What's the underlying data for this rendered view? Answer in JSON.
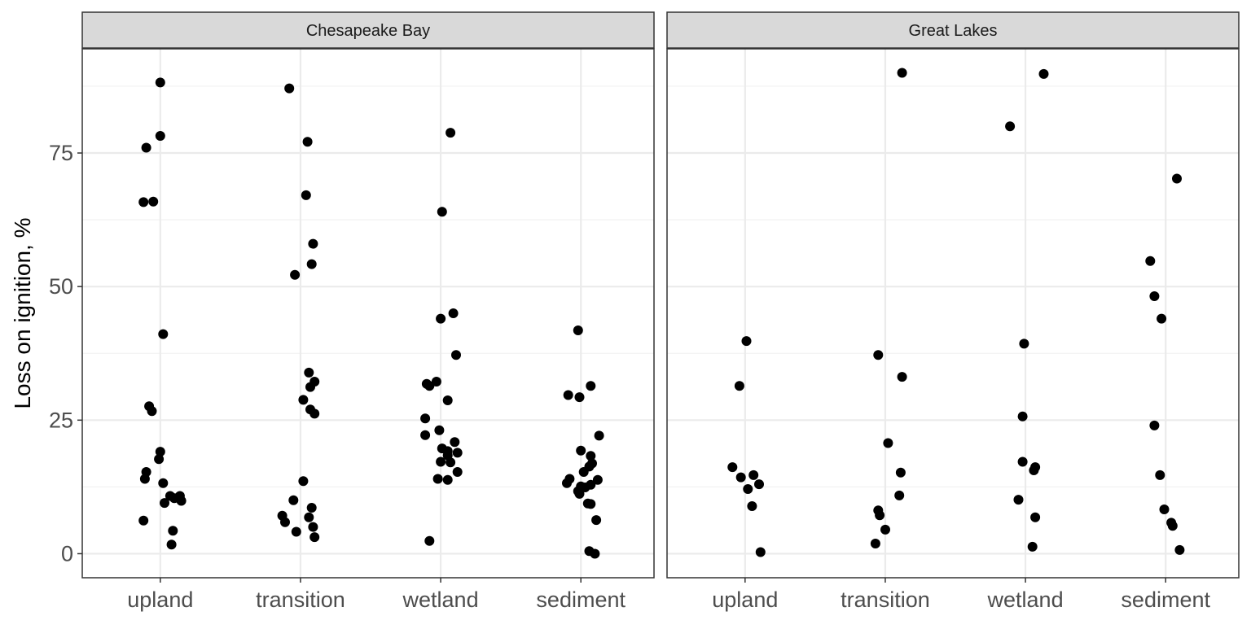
{
  "chart_data": {
    "type": "scatter",
    "ylabel": "Loss on ignition, %",
    "xlabel": "",
    "ylim": [
      -4.5,
      94.5
    ],
    "yticks": [
      0,
      25,
      50,
      75
    ],
    "categories": [
      "upland",
      "transition",
      "wetland",
      "sediment"
    ],
    "grid": true,
    "theme": "bw",
    "point_color": "#000000",
    "facets": [
      {
        "title": "Chesapeake Bay",
        "points": [
          {
            "x": "upland",
            "offset": 0.0,
            "y": 88.2
          },
          {
            "x": "upland",
            "offset": 0.0,
            "y": 78.2
          },
          {
            "x": "upland",
            "offset": -0.1,
            "y": 76.0
          },
          {
            "x": "upland",
            "offset": -0.12,
            "y": 65.8
          },
          {
            "x": "upland",
            "offset": -0.05,
            "y": 65.9
          },
          {
            "x": "upland",
            "offset": 0.02,
            "y": 41.1
          },
          {
            "x": "upland",
            "offset": -0.08,
            "y": 27.6
          },
          {
            "x": "upland",
            "offset": -0.06,
            "y": 26.7
          },
          {
            "x": "upland",
            "offset": 0.0,
            "y": 19.1
          },
          {
            "x": "upland",
            "offset": -0.01,
            "y": 17.7
          },
          {
            "x": "upland",
            "offset": -0.1,
            "y": 15.3
          },
          {
            "x": "upland",
            "offset": -0.11,
            "y": 14.0
          },
          {
            "x": "upland",
            "offset": 0.02,
            "y": 13.2
          },
          {
            "x": "upland",
            "offset": 0.07,
            "y": 10.8
          },
          {
            "x": "upland",
            "offset": 0.14,
            "y": 10.8
          },
          {
            "x": "upland",
            "offset": 0.1,
            "y": 10.4
          },
          {
            "x": "upland",
            "offset": 0.15,
            "y": 9.9
          },
          {
            "x": "upland",
            "offset": 0.03,
            "y": 9.5
          },
          {
            "x": "upland",
            "offset": -0.12,
            "y": 6.2
          },
          {
            "x": "upland",
            "offset": 0.09,
            "y": 4.3
          },
          {
            "x": "upland",
            "offset": 0.08,
            "y": 1.7
          },
          {
            "x": "transition",
            "offset": -0.08,
            "y": 87.1
          },
          {
            "x": "transition",
            "offset": 0.05,
            "y": 77.1
          },
          {
            "x": "transition",
            "offset": 0.04,
            "y": 67.1
          },
          {
            "x": "transition",
            "offset": 0.09,
            "y": 58.0
          },
          {
            "x": "transition",
            "offset": 0.08,
            "y": 54.2
          },
          {
            "x": "transition",
            "offset": -0.04,
            "y": 52.2
          },
          {
            "x": "transition",
            "offset": 0.06,
            "y": 33.9
          },
          {
            "x": "transition",
            "offset": 0.1,
            "y": 32.2
          },
          {
            "x": "transition",
            "offset": 0.07,
            "y": 31.2
          },
          {
            "x": "transition",
            "offset": 0.02,
            "y": 28.8
          },
          {
            "x": "transition",
            "offset": 0.07,
            "y": 27.0
          },
          {
            "x": "transition",
            "offset": 0.1,
            "y": 26.2
          },
          {
            "x": "transition",
            "offset": 0.02,
            "y": 13.6
          },
          {
            "x": "transition",
            "offset": -0.05,
            "y": 10.0
          },
          {
            "x": "transition",
            "offset": 0.08,
            "y": 8.6
          },
          {
            "x": "transition",
            "offset": -0.13,
            "y": 7.1
          },
          {
            "x": "transition",
            "offset": 0.06,
            "y": 6.8
          },
          {
            "x": "transition",
            "offset": -0.11,
            "y": 5.9
          },
          {
            "x": "transition",
            "offset": 0.09,
            "y": 5.0
          },
          {
            "x": "transition",
            "offset": -0.03,
            "y": 4.1
          },
          {
            "x": "transition",
            "offset": 0.1,
            "y": 3.1
          },
          {
            "x": "wetland",
            "offset": 0.07,
            "y": 78.8
          },
          {
            "x": "wetland",
            "offset": 0.01,
            "y": 64.0
          },
          {
            "x": "wetland",
            "offset": 0.09,
            "y": 45.0
          },
          {
            "x": "wetland",
            "offset": 0.0,
            "y": 44.0
          },
          {
            "x": "wetland",
            "offset": 0.11,
            "y": 37.2
          },
          {
            "x": "wetland",
            "offset": -0.03,
            "y": 32.2
          },
          {
            "x": "wetland",
            "offset": -0.1,
            "y": 31.8
          },
          {
            "x": "wetland",
            "offset": -0.08,
            "y": 31.4
          },
          {
            "x": "wetland",
            "offset": 0.05,
            "y": 28.7
          },
          {
            "x": "wetland",
            "offset": -0.11,
            "y": 25.3
          },
          {
            "x": "wetland",
            "offset": -0.01,
            "y": 23.1
          },
          {
            "x": "wetland",
            "offset": -0.11,
            "y": 22.2
          },
          {
            "x": "wetland",
            "offset": 0.1,
            "y": 20.9
          },
          {
            "x": "wetland",
            "offset": 0.01,
            "y": 19.7
          },
          {
            "x": "wetland",
            "offset": 0.05,
            "y": 19.2
          },
          {
            "x": "wetland",
            "offset": 0.12,
            "y": 18.9
          },
          {
            "x": "wetland",
            "offset": 0.05,
            "y": 18.4
          },
          {
            "x": "wetland",
            "offset": 0.0,
            "y": 17.2
          },
          {
            "x": "wetland",
            "offset": 0.07,
            "y": 17.1
          },
          {
            "x": "wetland",
            "offset": 0.12,
            "y": 15.3
          },
          {
            "x": "wetland",
            "offset": -0.02,
            "y": 14.0
          },
          {
            "x": "wetland",
            "offset": 0.05,
            "y": 13.8
          },
          {
            "x": "wetland",
            "offset": -0.08,
            "y": 2.4
          },
          {
            "x": "sediment",
            "offset": -0.02,
            "y": 41.8
          },
          {
            "x": "sediment",
            "offset": 0.07,
            "y": 31.4
          },
          {
            "x": "sediment",
            "offset": -0.09,
            "y": 29.7
          },
          {
            "x": "sediment",
            "offset": -0.01,
            "y": 29.3
          },
          {
            "x": "sediment",
            "offset": 0.13,
            "y": 22.1
          },
          {
            "x": "sediment",
            "offset": 0.0,
            "y": 19.3
          },
          {
            "x": "sediment",
            "offset": 0.07,
            "y": 18.3
          },
          {
            "x": "sediment",
            "offset": 0.08,
            "y": 16.9
          },
          {
            "x": "sediment",
            "offset": 0.06,
            "y": 16.3
          },
          {
            "x": "sediment",
            "offset": 0.02,
            "y": 15.3
          },
          {
            "x": "sediment",
            "offset": -0.08,
            "y": 14.0
          },
          {
            "x": "sediment",
            "offset": 0.12,
            "y": 13.8
          },
          {
            "x": "sediment",
            "offset": -0.1,
            "y": 13.2
          },
          {
            "x": "sediment",
            "offset": 0.07,
            "y": 12.9
          },
          {
            "x": "sediment",
            "offset": 0.0,
            "y": 12.6
          },
          {
            "x": "sediment",
            "offset": 0.03,
            "y": 12.4
          },
          {
            "x": "sediment",
            "offset": -0.02,
            "y": 11.7
          },
          {
            "x": "sediment",
            "offset": -0.01,
            "y": 11.2
          },
          {
            "x": "sediment",
            "offset": 0.05,
            "y": 9.4
          },
          {
            "x": "sediment",
            "offset": 0.07,
            "y": 9.3
          },
          {
            "x": "sediment",
            "offset": 0.11,
            "y": 6.3
          },
          {
            "x": "sediment",
            "offset": 0.06,
            "y": 0.5
          },
          {
            "x": "sediment",
            "offset": 0.1,
            "y": 0.0
          }
        ]
      },
      {
        "title": "Great Lakes",
        "points": [
          {
            "x": "upland",
            "offset": 0.01,
            "y": 39.8
          },
          {
            "x": "upland",
            "offset": -0.04,
            "y": 31.4
          },
          {
            "x": "upland",
            "offset": -0.09,
            "y": 16.2
          },
          {
            "x": "upland",
            "offset": 0.06,
            "y": 14.7
          },
          {
            "x": "upland",
            "offset": -0.03,
            "y": 14.3
          },
          {
            "x": "upland",
            "offset": 0.1,
            "y": 13.0
          },
          {
            "x": "upland",
            "offset": 0.02,
            "y": 12.1
          },
          {
            "x": "upland",
            "offset": 0.05,
            "y": 8.9
          },
          {
            "x": "upland",
            "offset": 0.11,
            "y": 0.3
          },
          {
            "x": "transition",
            "offset": 0.12,
            "y": 90.0
          },
          {
            "x": "transition",
            "offset": -0.05,
            "y": 37.2
          },
          {
            "x": "transition",
            "offset": 0.12,
            "y": 33.1
          },
          {
            "x": "transition",
            "offset": 0.02,
            "y": 20.7
          },
          {
            "x": "transition",
            "offset": 0.11,
            "y": 15.2
          },
          {
            "x": "transition",
            "offset": 0.1,
            "y": 10.9
          },
          {
            "x": "transition",
            "offset": -0.05,
            "y": 8.1
          },
          {
            "x": "transition",
            "offset": -0.04,
            "y": 7.2
          },
          {
            "x": "transition",
            "offset": 0.0,
            "y": 4.5
          },
          {
            "x": "transition",
            "offset": -0.07,
            "y": 1.9
          },
          {
            "x": "wetland",
            "offset": -0.11,
            "y": 80.0
          },
          {
            "x": "wetland",
            "offset": 0.13,
            "y": 89.8
          },
          {
            "x": "wetland",
            "offset": -0.01,
            "y": 39.3
          },
          {
            "x": "wetland",
            "offset": -0.02,
            "y": 25.7
          },
          {
            "x": "wetland",
            "offset": -0.02,
            "y": 17.2
          },
          {
            "x": "wetland",
            "offset": 0.07,
            "y": 16.2
          },
          {
            "x": "wetland",
            "offset": 0.06,
            "y": 15.6
          },
          {
            "x": "wetland",
            "offset": -0.05,
            "y": 10.1
          },
          {
            "x": "wetland",
            "offset": 0.07,
            "y": 6.8
          },
          {
            "x": "wetland",
            "offset": 0.05,
            "y": 1.3
          },
          {
            "x": "sediment",
            "offset": 0.08,
            "y": 70.2
          },
          {
            "x": "sediment",
            "offset": -0.11,
            "y": 54.8
          },
          {
            "x": "sediment",
            "offset": -0.08,
            "y": 48.2
          },
          {
            "x": "sediment",
            "offset": -0.03,
            "y": 44.0
          },
          {
            "x": "sediment",
            "offset": -0.08,
            "y": 24.0
          },
          {
            "x": "sediment",
            "offset": -0.04,
            "y": 14.7
          },
          {
            "x": "sediment",
            "offset": -0.01,
            "y": 8.3
          },
          {
            "x": "sediment",
            "offset": 0.04,
            "y": 5.8
          },
          {
            "x": "sediment",
            "offset": 0.05,
            "y": 5.2
          },
          {
            "x": "sediment",
            "offset": 0.1,
            "y": 0.7
          }
        ]
      }
    ]
  }
}
